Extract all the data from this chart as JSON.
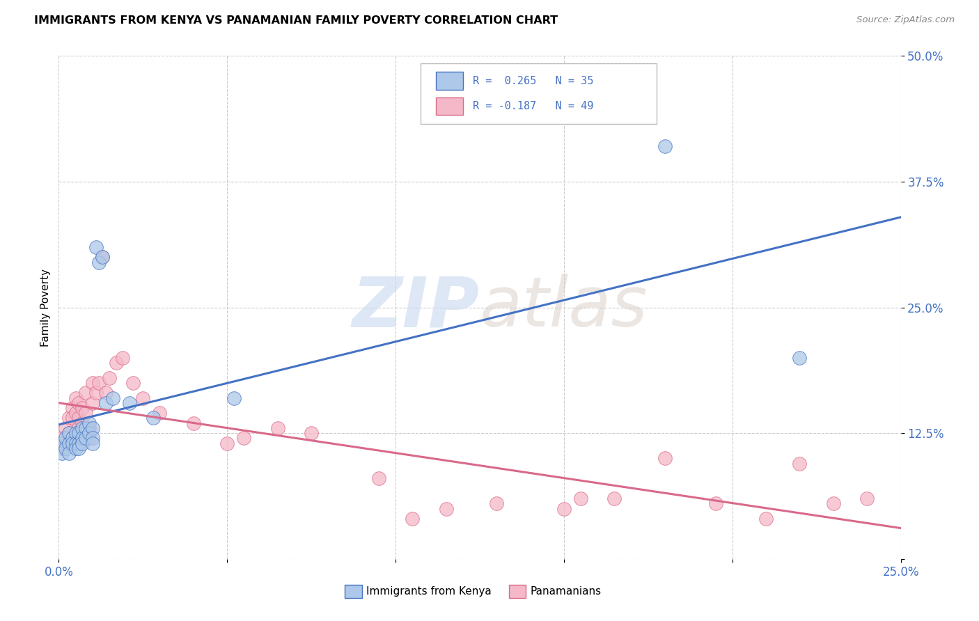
{
  "title": "IMMIGRANTS FROM KENYA VS PANAMANIAN FAMILY POVERTY CORRELATION CHART",
  "source": "Source: ZipAtlas.com",
  "ylabel": "Family Poverty",
  "x_ticks": [
    0.0,
    0.05,
    0.1,
    0.15,
    0.2,
    0.25
  ],
  "y_ticks": [
    0.0,
    0.125,
    0.25,
    0.375,
    0.5
  ],
  "xlim": [
    0.0,
    0.25
  ],
  "ylim": [
    0.0,
    0.5
  ],
  "color_kenya": "#adc8e8",
  "color_panama": "#f5b8c8",
  "line_color_kenya": "#4472c4",
  "line_color_panama": "#d9698a",
  "watermark1": "ZIP",
  "watermark2": "atlas",
  "legend_label1": "Immigrants from Kenya",
  "legend_label2": "Panamanians",
  "kenya_x": [
    0.001,
    0.001,
    0.002,
    0.002,
    0.003,
    0.003,
    0.003,
    0.004,
    0.004,
    0.005,
    0.005,
    0.005,
    0.006,
    0.006,
    0.006,
    0.007,
    0.007,
    0.007,
    0.008,
    0.008,
    0.009,
    0.009,
    0.01,
    0.01,
    0.01,
    0.011,
    0.012,
    0.013,
    0.014,
    0.016,
    0.021,
    0.028,
    0.052,
    0.18,
    0.22
  ],
  "kenya_y": [
    0.115,
    0.105,
    0.12,
    0.11,
    0.125,
    0.115,
    0.105,
    0.12,
    0.115,
    0.125,
    0.115,
    0.11,
    0.125,
    0.115,
    0.11,
    0.13,
    0.12,
    0.115,
    0.13,
    0.12,
    0.135,
    0.125,
    0.13,
    0.12,
    0.115,
    0.31,
    0.295,
    0.3,
    0.155,
    0.16,
    0.155,
    0.14,
    0.16,
    0.41,
    0.2
  ],
  "panama_x": [
    0.001,
    0.001,
    0.002,
    0.002,
    0.003,
    0.003,
    0.004,
    0.004,
    0.005,
    0.005,
    0.006,
    0.006,
    0.006,
    0.007,
    0.007,
    0.008,
    0.008,
    0.009,
    0.009,
    0.01,
    0.01,
    0.011,
    0.012,
    0.013,
    0.014,
    0.015,
    0.017,
    0.019,
    0.022,
    0.025,
    0.03,
    0.04,
    0.05,
    0.055,
    0.065,
    0.075,
    0.095,
    0.105,
    0.115,
    0.13,
    0.15,
    0.155,
    0.165,
    0.18,
    0.195,
    0.21,
    0.22,
    0.23,
    0.24
  ],
  "panama_y": [
    0.12,
    0.11,
    0.13,
    0.115,
    0.14,
    0.125,
    0.15,
    0.14,
    0.16,
    0.145,
    0.155,
    0.14,
    0.13,
    0.15,
    0.135,
    0.165,
    0.145,
    0.13,
    0.12,
    0.175,
    0.155,
    0.165,
    0.175,
    0.3,
    0.165,
    0.18,
    0.195,
    0.2,
    0.175,
    0.16,
    0.145,
    0.135,
    0.115,
    0.12,
    0.13,
    0.125,
    0.08,
    0.04,
    0.05,
    0.055,
    0.05,
    0.06,
    0.06,
    0.1,
    0.055,
    0.04,
    0.095,
    0.055,
    0.06
  ]
}
